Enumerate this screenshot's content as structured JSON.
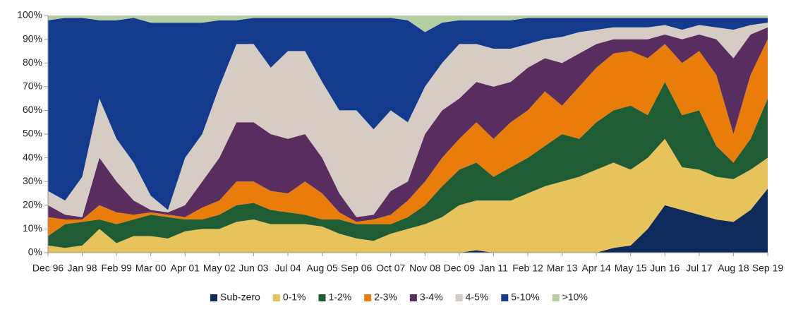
{
  "chart_data": {
    "type": "stacked_area",
    "categories": [
      "Dec 96",
      null,
      "Jan 98",
      null,
      "Feb 99",
      null,
      "Mar 00",
      null,
      "Apr 01",
      null,
      "May 02",
      null,
      "Jun 03",
      null,
      "Jul 04",
      null,
      "Aug 05",
      null,
      "Sep 06",
      null,
      "Oct 07",
      null,
      "Nov 08",
      null,
      "Dec 09",
      null,
      "Jan 11",
      null,
      "Feb 12",
      null,
      "Mar 13",
      null,
      "Apr 14",
      null,
      "May 15",
      null,
      "Jun 16",
      null,
      "Jul 17",
      null,
      "Aug 18",
      null,
      "Sep 19"
    ],
    "series": [
      {
        "name": "Sub-zero",
        "color": "#0f2a5a",
        "values": [
          0,
          0,
          0,
          0,
          0,
          0,
          0,
          0,
          0,
          0,
          0,
          0,
          0,
          0,
          0,
          0,
          0,
          0,
          0,
          0,
          0,
          0,
          0,
          0,
          0,
          1,
          0,
          0,
          0,
          0,
          0,
          0,
          0,
          2,
          3,
          10,
          20,
          18,
          16,
          14,
          13,
          18,
          27
        ]
      },
      {
        "name": "0-1%",
        "color": "#e6c35c",
        "values": [
          3,
          2,
          3,
          10,
          4,
          7,
          7,
          6,
          9,
          10,
          10,
          13,
          14,
          12,
          12,
          12,
          11,
          8,
          6,
          5,
          8,
          10,
          12,
          15,
          20,
          21,
          22,
          22,
          25,
          28,
          30,
          32,
          35,
          36,
          32,
          30,
          28,
          18,
          19,
          18,
          18,
          17,
          13
        ]
      },
      {
        "name": "1-2%",
        "color": "#1f5c34",
        "values": [
          4,
          10,
          10,
          4,
          8,
          7,
          9,
          9,
          5,
          4,
          6,
          7,
          7,
          6,
          5,
          4,
          3,
          6,
          6,
          7,
          4,
          5,
          8,
          13,
          15,
          16,
          10,
          14,
          15,
          17,
          20,
          16,
          20,
          22,
          27,
          18,
          24,
          22,
          25,
          13,
          7,
          13,
          25
        ]
      },
      {
        "name": "2-3%",
        "color": "#e87d0b",
        "values": [
          8,
          2,
          1,
          6,
          5,
          2,
          1,
          1,
          1,
          5,
          6,
          10,
          9,
          8,
          8,
          14,
          11,
          3,
          1,
          2,
          4,
          7,
          10,
          12,
          13,
          17,
          16,
          19,
          20,
          23,
          12,
          22,
          23,
          24,
          23,
          24,
          16,
          22,
          25,
          30,
          12,
          27,
          25
        ]
      },
      {
        "name": "3-4%",
        "color": "#5a2d5f",
        "values": [
          5,
          2,
          1,
          20,
          13,
          6,
          1,
          1,
          5,
          11,
          18,
          25,
          25,
          24,
          23,
          20,
          15,
          8,
          2,
          2,
          10,
          8,
          20,
          20,
          17,
          17,
          22,
          17,
          18,
          14,
          18,
          14,
          10,
          6,
          5,
          8,
          4,
          10,
          7,
          15,
          32,
          17,
          5
        ]
      },
      {
        "name": "4-5%",
        "color": "#d5ccc6",
        "values": [
          6,
          6,
          17,
          25,
          18,
          16,
          6,
          1,
          20,
          20,
          30,
          33,
          33,
          28,
          37,
          35,
          32,
          35,
          45,
          36,
          34,
          25,
          20,
          20,
          23,
          16,
          16,
          14,
          10,
          8,
          11,
          9,
          6,
          5,
          5,
          5,
          4,
          4,
          4,
          5,
          12,
          4,
          2
        ]
      },
      {
        "name": "5-10%",
        "color": "#133a8c",
        "values": [
          72,
          77,
          67,
          33,
          50,
          61,
          73,
          79,
          57,
          47,
          28,
          10,
          11,
          21,
          14,
          14,
          27,
          39,
          39,
          47,
          39,
          43,
          23,
          17,
          10,
          10,
          12,
          12,
          11,
          9,
          8,
          6,
          5,
          4,
          4,
          4,
          3,
          5,
          3,
          4,
          5,
          3,
          2
        ]
      },
      {
        "name": ">10%",
        "color": "#b5cfa3",
        "values": [
          2,
          1,
          1,
          2,
          2,
          1,
          3,
          3,
          3,
          3,
          2,
          2,
          1,
          1,
          1,
          1,
          1,
          1,
          1,
          1,
          1,
          2,
          7,
          3,
          2,
          2,
          2,
          2,
          1,
          1,
          1,
          1,
          1,
          1,
          1,
          1,
          1,
          1,
          1,
          1,
          1,
          1,
          1
        ]
      }
    ],
    "ylim": [
      0,
      100
    ],
    "yticks": [
      {
        "value": 0,
        "label": "0%"
      },
      {
        "value": 10,
        "label": "10%"
      },
      {
        "value": 20,
        "label": "20%"
      },
      {
        "value": 30,
        "label": "30%"
      },
      {
        "value": 40,
        "label": "40%"
      },
      {
        "value": 50,
        "label": "50%"
      },
      {
        "value": 60,
        "label": "60%"
      },
      {
        "value": 70,
        "label": "70%"
      },
      {
        "value": 80,
        "label": "80%"
      },
      {
        "value": 90,
        "label": "90%"
      },
      {
        "value": 100,
        "label": "100%"
      }
    ],
    "legend": "bottom"
  }
}
